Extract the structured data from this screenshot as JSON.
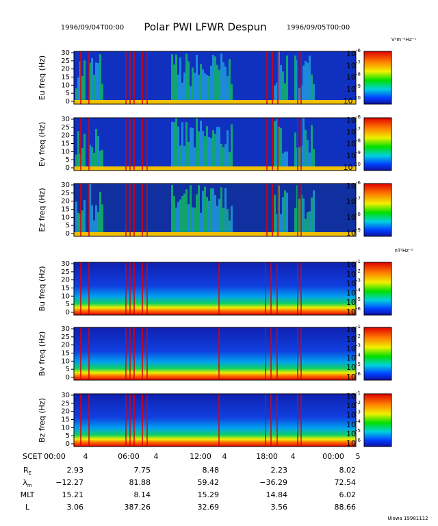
{
  "header": {
    "start": "1996/09/04T00:00",
    "title": "Polar PWI LFWR Despun",
    "end": "1996/09/05T00:00"
  },
  "e_units": "V²m⁻²Hz⁻¹",
  "b_units": "nT²Hz⁻¹",
  "freq_ticks": [
    "0",
    "5",
    "10",
    "15",
    "20",
    "25",
    "30"
  ],
  "panels": [
    {
      "ylabel": "Eu freq (Hz)",
      "colorbar": [
        "-6",
        "-7",
        "-8",
        "-9",
        "-10"
      ]
    },
    {
      "ylabel": "Ev freq (Hz)",
      "colorbar": [
        "-6",
        "-7",
        "-8",
        "-9",
        "-10"
      ]
    },
    {
      "ylabel": "Ez freq (Hz)",
      "colorbar": [
        "-6",
        "-7",
        "-8",
        "-9"
      ]
    },
    {
      "ylabel": "Bu freq (Hz)",
      "colorbar": [
        "-1",
        "-2",
        "-3",
        "-4",
        "-5",
        "-6"
      ]
    },
    {
      "ylabel": "Bv freq (Hz)",
      "colorbar": [
        "-1",
        "-2",
        "-3",
        "-4",
        "-5",
        "-6"
      ]
    },
    {
      "ylabel": "Bz freq (Hz)",
      "colorbar": [
        "-1",
        "-2",
        "-3",
        "-4",
        "-5",
        "-6"
      ]
    }
  ],
  "colorbar_base": "10",
  "time_axis": {
    "label": "SCET",
    "ticks": [
      "00:00",
      "4",
      "06:00",
      "4",
      "12:00",
      "4",
      "18:00",
      "4",
      "00:00",
      "5"
    ]
  },
  "ephemeris": [
    {
      "name": "R",
      "sub": "E",
      "values": [
        "2.93",
        "7.75",
        "8.48",
        "2.23",
        "8.02"
      ]
    },
    {
      "name": "λ",
      "sub": "m",
      "values": [
        "−12.27",
        "81.88",
        "59.42",
        "−36.29",
        "72.54"
      ]
    },
    {
      "name": "MLT",
      "sub": "",
      "values": [
        "15.21",
        "8.14",
        "15.29",
        "14.84",
        "6.02"
      ]
    },
    {
      "name": "L",
      "sub": "",
      "values": [
        "3.06",
        "387.26",
        "32.69",
        "3.56",
        "88.66"
      ]
    }
  ],
  "footer": "Uiowa 19981112"
}
